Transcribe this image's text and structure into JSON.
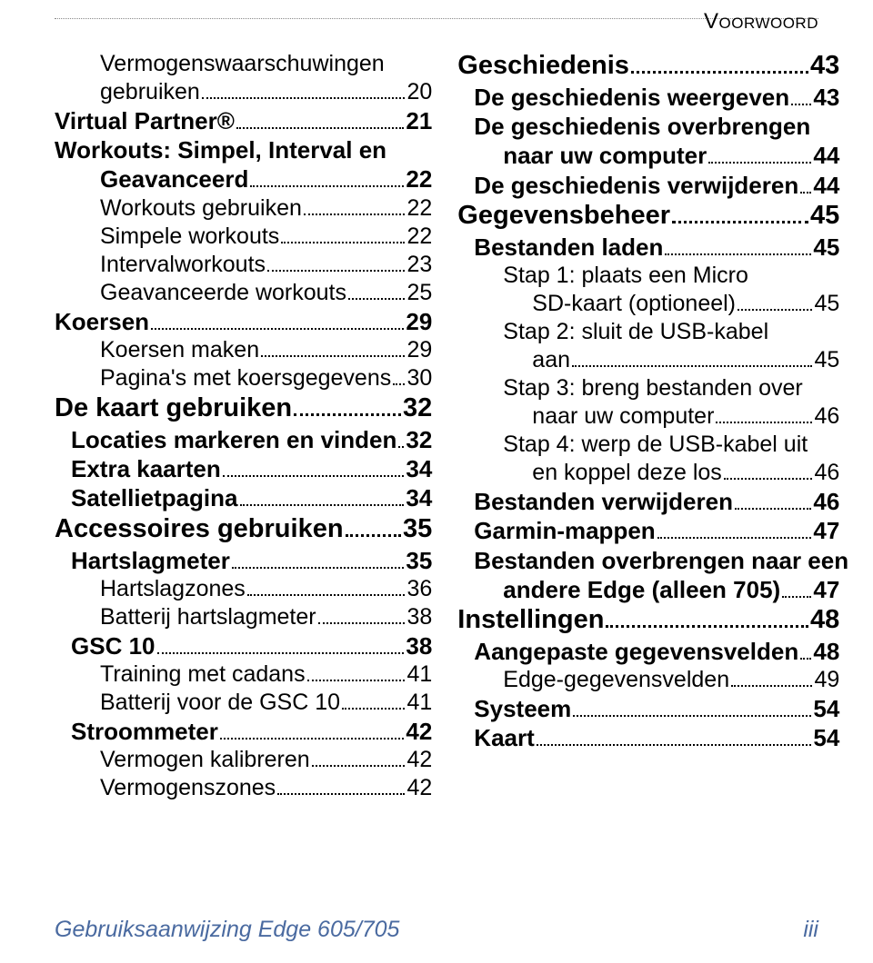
{
  "header": {
    "section_label": "Voorwoord"
  },
  "colors": {
    "text": "#000000",
    "footer": "#4a6aa0",
    "rule": "#888888",
    "background": "#ffffff"
  },
  "typography": {
    "font_family": "Arial, Helvetica, sans-serif",
    "lvl0_size_pt": 22,
    "lvl1_size_pt": 19,
    "lvl2_size_pt": 18,
    "lvl3_size_pt": 17,
    "footer_size_pt": 18
  },
  "left_column": [
    {
      "level": 2,
      "label_lines": [
        "Vermogenswaarschuwingen",
        "gebruiken"
      ],
      "page": "20"
    },
    {
      "level": 1,
      "noindent": true,
      "label_lines": [
        "Virtual Partner®"
      ],
      "page": "21"
    },
    {
      "level": 1,
      "noindent": true,
      "label_lines": [
        "Workouts: Simpel, Interval en",
        "Geavanceerd"
      ],
      "page": "22",
      "cont_indent": 2
    },
    {
      "level": 2,
      "label_lines": [
        "Workouts gebruiken"
      ],
      "page": "22"
    },
    {
      "level": 2,
      "label_lines": [
        "Simpele workouts"
      ],
      "page": "22"
    },
    {
      "level": 2,
      "label_lines": [
        "Intervalworkouts"
      ],
      "page": "23"
    },
    {
      "level": 2,
      "label_lines": [
        "Geavanceerde workouts"
      ],
      "page": "25"
    },
    {
      "level": 1,
      "noindent": true,
      "label_lines": [
        "Koersen"
      ],
      "page": "29"
    },
    {
      "level": 2,
      "label_lines": [
        "Koersen maken"
      ],
      "page": "29"
    },
    {
      "level": 2,
      "label_lines": [
        "Pagina's met koersgegevens"
      ],
      "page": "30"
    },
    {
      "level": 0,
      "label_lines": [
        "De kaart gebruiken"
      ],
      "page": "32"
    },
    {
      "level": 1,
      "label_lines": [
        "Locaties markeren en vinden"
      ],
      "page": "32"
    },
    {
      "level": 1,
      "label_lines": [
        "Extra kaarten"
      ],
      "page": "34"
    },
    {
      "level": 1,
      "label_lines": [
        "Satellietpagina"
      ],
      "page": "34"
    },
    {
      "level": 0,
      "label_lines": [
        "Accessoires gebruiken"
      ],
      "page": "35"
    },
    {
      "level": 1,
      "label_lines": [
        "Hartslagmeter"
      ],
      "page": "35"
    },
    {
      "level": 2,
      "label_lines": [
        "Hartslagzones"
      ],
      "page": "36"
    },
    {
      "level": 2,
      "label_lines": [
        "Batterij hartslagmeter"
      ],
      "page": "38"
    },
    {
      "level": 1,
      "label_lines": [
        "GSC 10"
      ],
      "page": "38"
    },
    {
      "level": 2,
      "label_lines": [
        "Training met cadans"
      ],
      "page": "41"
    },
    {
      "level": 2,
      "label_lines": [
        "Batterij voor de GSC 10"
      ],
      "page": "41"
    },
    {
      "level": 1,
      "label_lines": [
        "Stroommeter"
      ],
      "page": "42"
    },
    {
      "level": 2,
      "label_lines": [
        "Vermogen kalibreren"
      ],
      "page": "42"
    },
    {
      "level": 2,
      "label_lines": [
        "Vermogenszones"
      ],
      "page": "42"
    }
  ],
  "right_column": [
    {
      "level": 0,
      "label_lines": [
        "Geschiedenis"
      ],
      "page": "43"
    },
    {
      "level": 1,
      "label_lines": [
        "De geschiedenis weergeven"
      ],
      "page": "43"
    },
    {
      "level": 1,
      "label_lines": [
        "De geschiedenis overbrengen",
        "naar uw computer"
      ],
      "page": "44",
      "cont_indent": 2
    },
    {
      "level": 1,
      "label_lines": [
        "De geschiedenis verwijderen"
      ],
      "page": "44"
    },
    {
      "level": 0,
      "label_lines": [
        "Gegevensbeheer"
      ],
      "page": "45"
    },
    {
      "level": 1,
      "label_lines": [
        "Bestanden laden"
      ],
      "page": "45"
    },
    {
      "level": 2,
      "label_lines": [
        "Stap 1: plaats een Micro",
        "SD-kaart (optioneel)"
      ],
      "page": "45",
      "cont_indent": 3
    },
    {
      "level": 2,
      "label_lines": [
        "Stap 2: sluit de USB-kabel",
        "aan"
      ],
      "page": "45",
      "cont_indent": 3
    },
    {
      "level": 2,
      "label_lines": [
        "Stap 3: breng bestanden over",
        "naar uw computer"
      ],
      "page": "46",
      "cont_indent": 3
    },
    {
      "level": 2,
      "label_lines": [
        "Stap 4: werp de USB-kabel uit",
        "en koppel deze los"
      ],
      "page": "46",
      "cont_indent": 3
    },
    {
      "level": 1,
      "label_lines": [
        "Bestanden verwijderen"
      ],
      "page": "46"
    },
    {
      "level": 1,
      "label_lines": [
        "Garmin-mappen"
      ],
      "page": "47"
    },
    {
      "level": 1,
      "label_lines": [
        "Bestanden overbrengen naar een",
        "andere Edge (alleen 705)"
      ],
      "page": "47",
      "cont_indent": 2
    },
    {
      "level": 0,
      "label_lines": [
        "Instellingen"
      ],
      "page": "48"
    },
    {
      "level": 1,
      "label_lines": [
        "Aangepaste gegevensvelden"
      ],
      "page": "48"
    },
    {
      "level": 2,
      "label_lines": [
        "Edge-gegevensvelden"
      ],
      "page": "49"
    },
    {
      "level": 1,
      "label_lines": [
        "Systeem"
      ],
      "page": "54"
    },
    {
      "level": 1,
      "label_lines": [
        "Kaart"
      ],
      "page": "54"
    }
  ],
  "footer": {
    "left": "Gebruiksaanwijzing Edge 605/705",
    "right": "iii"
  }
}
